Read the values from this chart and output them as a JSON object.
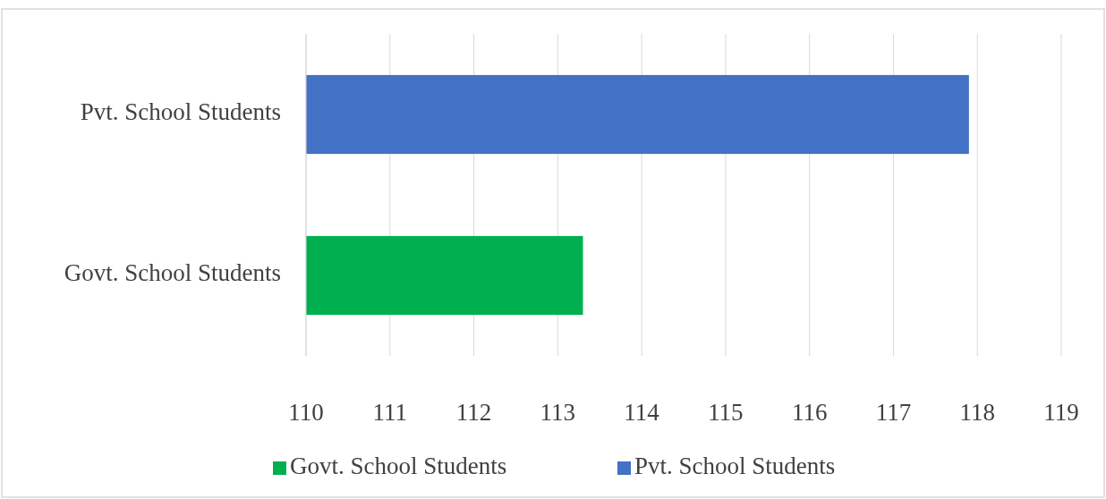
{
  "chart_data": {
    "type": "bar",
    "orientation": "horizontal",
    "categories": [
      "Pvt. School Students",
      "Govt. School Students"
    ],
    "series": [
      {
        "name": "Govt. School Students",
        "color": "#00b050",
        "values": [
          null,
          113.3
        ]
      },
      {
        "name": "Pvt. School Students",
        "color": "#4472c4",
        "values": [
          117.9,
          null
        ]
      }
    ],
    "xlim": [
      110,
      119
    ],
    "xticks": [
      110,
      111,
      112,
      113,
      114,
      115,
      116,
      117,
      118,
      119
    ],
    "grid": "x",
    "legend": "bottom"
  }
}
